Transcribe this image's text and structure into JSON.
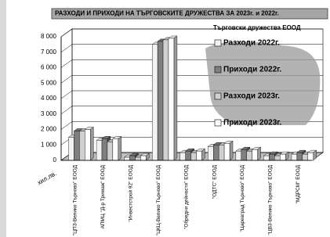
{
  "chart_data": {
    "type": "bar3d",
    "title": "РАЗХОДИ И ПРИХОДИ НА ТЪРГОВСКИТЕ ДРУЖЕСТВА ЗА  2023г. и 2022г.",
    "legend_title": "Търговски дружества ЕООД",
    "y_label": "хил.лв.",
    "categories": [
      "\"ЦПЗ-Велико Търново\" ЕООД",
      "АПМЦ \"Д-р Тримаж\" ЕООД",
      "\"Инвестстрой 92\" ЕООД",
      "\"ЦКЦ-Велико Търново\" ЕООД",
      "\"Обредни дейности\" ЕООД",
      "\"ОДТС\" ЕООД",
      "\"Царевград Търново\" ЕООД",
      "\"ЦВЗ-Велико Търново\" ЕООД",
      "\"МДРСМ\" ЕООД"
    ],
    "series": [
      {
        "name": "Разходи 2022г.",
        "color": "#f2f2f2",
        "values": [
          1500,
          1300,
          200,
          7500,
          500,
          900,
          600,
          300,
          400
        ]
      },
      {
        "name": "Приходи 2022г.",
        "color": "#7f7f7f",
        "values": [
          1900,
          1400,
          300,
          7700,
          600,
          1000,
          700,
          400,
          500
        ]
      },
      {
        "name": "Разходи 2023г.",
        "color": "#d0d0d0",
        "values": [
          1900,
          1200,
          200,
          7800,
          500,
          1000,
          600,
          300,
          400
        ]
      },
      {
        "name": "Приходи 2023г.",
        "color": "#ffffff",
        "values": [
          2000,
          1400,
          300,
          7900,
          600,
          1100,
          700,
          400,
          500
        ]
      }
    ],
    "ylim": [
      0,
      8000
    ],
    "yticks": [
      0,
      {
        "value": 1000,
        "label": "1 000"
      },
      {
        "value": 2000,
        "label": "2 000"
      },
      {
        "value": 3000,
        "label": "3 000"
      },
      {
        "value": 4000,
        "label": "4 000"
      },
      {
        "value": 5000,
        "label": "5 000"
      },
      {
        "value": 6000,
        "label": "6 000"
      },
      {
        "value": 7000,
        "label": "7 000"
      },
      {
        "value": 8000,
        "label": "8 000"
      }
    ],
    "grid": true,
    "legend": "right"
  }
}
